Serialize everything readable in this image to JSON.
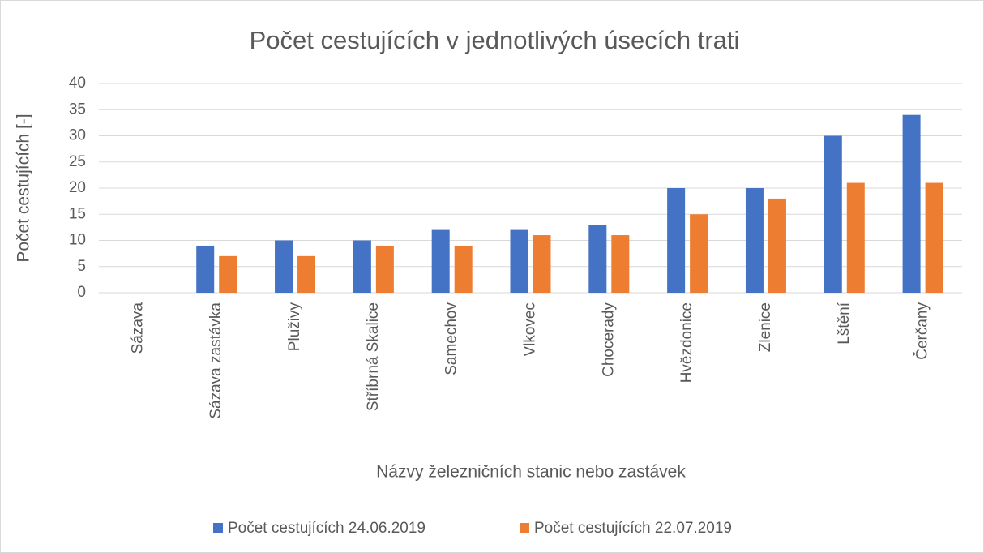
{
  "chart_data": {
    "type": "bar",
    "title": "Počet cestujících v jednotlivých úsecích trati",
    "x_label": "Názvy železničních stanic nebo zastávek",
    "y_label": "Počet cestujících [-]",
    "categories": [
      "Sázava",
      "Sázava zastávka",
      "Pluživy",
      "Stříbrná Skalice",
      "Samechov",
      "Vlkovec",
      "Chocerady",
      "Hvězdonice",
      "Zlenice",
      "Lštění",
      "Čerčany"
    ],
    "series": [
      {
        "name": "Počet cestujících 24.06.2019",
        "color": "#4472c4",
        "values": [
          0,
          9,
          10,
          10,
          12,
          12,
          13,
          20,
          20,
          30,
          34
        ]
      },
      {
        "name": "Počet cestujících 22.07.2019",
        "color": "#ed7d31",
        "values": [
          0,
          7,
          7,
          9,
          9,
          11,
          11,
          15,
          18,
          21,
          21
        ]
      }
    ],
    "ylim": [
      0,
      40
    ],
    "yticks": [
      0,
      5,
      10,
      15,
      20,
      25,
      30,
      35,
      40
    ],
    "grid": true,
    "legend": "bottom"
  }
}
